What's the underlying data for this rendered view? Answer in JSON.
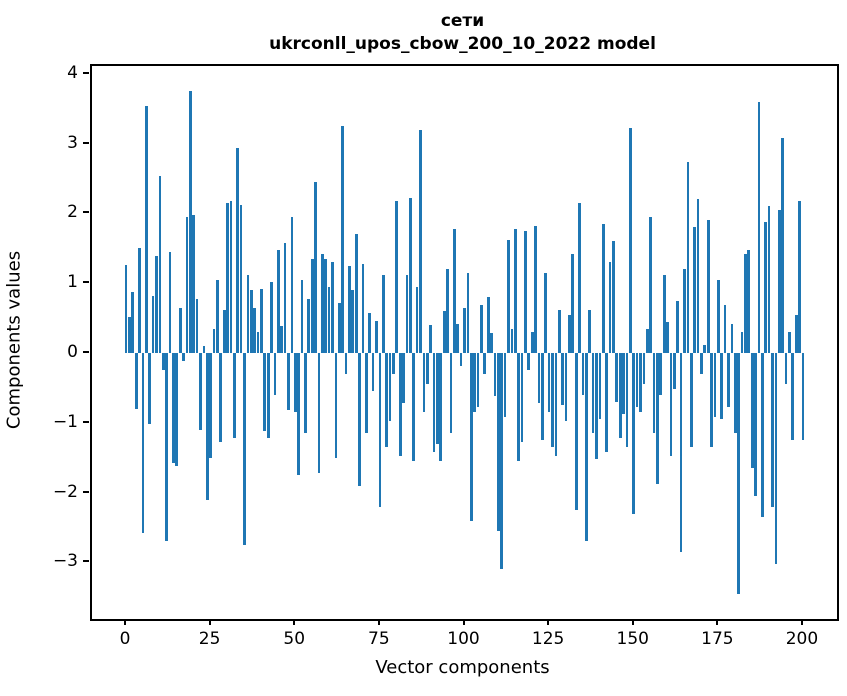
{
  "figure": {
    "background": "#ffffff",
    "text_color": "#000000"
  },
  "chart_data": {
    "type": "bar",
    "title": "сети",
    "subtitle": "ukrconll_upos_cbow_200_10_2022 model",
    "xlabel": "Vector components",
    "ylabel": "Components values",
    "bar_color": "#1f77b4",
    "grid": false,
    "legend": null,
    "x_is_index": true,
    "n_bars": 201,
    "xlim": [
      -10.05,
      210.05
    ],
    "ylim": [
      -3.81,
      4.11
    ],
    "xticks": [
      0,
      25,
      50,
      75,
      100,
      125,
      150,
      175,
      200
    ],
    "yticks": [
      4,
      3,
      2,
      1,
      0,
      -1,
      -2,
      -3
    ],
    "values": [
      1.26,
      0.52,
      0.88,
      -0.8,
      1.5,
      -2.58,
      3.54,
      -1.02,
      0.82,
      1.39,
      2.53,
      -0.25,
      -2.7,
      1.45,
      -1.58,
      -1.62,
      0.64,
      -0.12,
      1.95,
      3.75,
      1.98,
      0.78,
      -1.1,
      0.1,
      -2.1,
      -1.5,
      0.35,
      1.05,
      -1.28,
      0.62,
      2.15,
      2.17,
      -1.22,
      2.93,
      2.12,
      -2.75,
      1.12,
      0.9,
      0.65,
      0.3,
      0.92,
      -1.12,
      -1.22,
      1.02,
      -0.6,
      1.48,
      0.38,
      1.58,
      -0.82,
      1.95,
      -0.85,
      -1.75,
      1.05,
      -1.15,
      0.78,
      1.35,
      2.45,
      -1.72,
      1.42,
      1.35,
      0.95,
      1.3,
      -1.5,
      0.72,
      3.25,
      -0.3,
      1.25,
      0.9,
      1.7,
      -1.9,
      1.27,
      -1.15,
      0.57,
      -0.55,
      0.46,
      -2.2,
      1.12,
      -1.35,
      -0.98,
      -0.3,
      2.18,
      -1.48,
      -0.72,
      1.12,
      2.22,
      -1.55,
      0.95,
      3.2,
      -0.85,
      -0.45,
      0.4,
      -1.42,
      -1.3,
      -1.55,
      0.6,
      1.2,
      -1.15,
      1.78,
      0.42,
      -0.18,
      0.65,
      1.15,
      -2.4,
      -0.85,
      -0.78,
      0.68,
      -0.3,
      0.8,
      0.28,
      -0.62,
      -2.55,
      -3.1,
      -0.92,
      1.62,
      0.35,
      1.78,
      -1.55,
      -1.28,
      1.75,
      -0.25,
      0.3,
      1.82,
      -0.72,
      -1.25,
      1.15,
      -0.85,
      -1.35,
      -1.48,
      0.62,
      -0.75,
      -0.98,
      0.55,
      1.42,
      -2.25,
      2.15,
      -0.6,
      -2.7,
      0.62,
      -1.15,
      -1.52,
      -0.95,
      1.85,
      -1.42,
      1.3,
      1.6,
      -0.7,
      -1.22,
      -0.88,
      -1.35,
      3.22,
      -2.3,
      -0.78,
      -0.85,
      -0.45,
      0.35,
      1.95,
      -1.15,
      -1.88,
      -0.6,
      1.12,
      0.45,
      -1.48,
      -0.52,
      0.75,
      -2.85,
      1.2,
      2.73,
      -1.35,
      1.8,
      2.2,
      -0.3,
      0.12,
      1.9,
      -1.35,
      -0.92,
      1.05,
      -0.95,
      0.68,
      -0.78,
      0.42,
      -1.15,
      -3.45,
      0.3,
      1.42,
      1.48,
      -1.65,
      -2.05,
      3.6,
      -2.35,
      1.88,
      2.1,
      -2.2,
      -3.02,
      2.05,
      3.08,
      -0.45,
      0.3,
      -1.25,
      0.55,
      2.17,
      -1.25
    ]
  }
}
